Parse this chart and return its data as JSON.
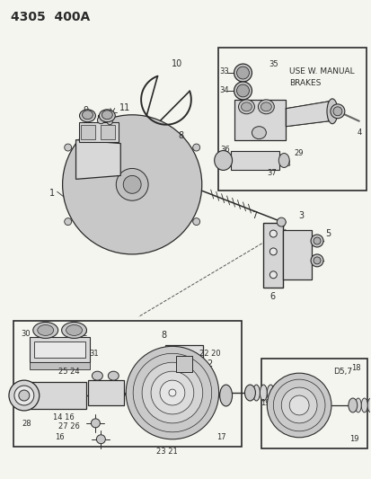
{
  "bg": "#f5f5f0",
  "lc": "#2a2a2a",
  "lc_thin": "#444444",
  "gray1": "#c8c8c8",
  "gray2": "#d8d8d8",
  "gray3": "#e8e8e8",
  "title": "4305  400A",
  "manual_text": "USE W. MANUAL\nBRAKES",
  "d57": "D5,7",
  "fw": 4.14,
  "fh": 5.33,
  "dpi": 100
}
